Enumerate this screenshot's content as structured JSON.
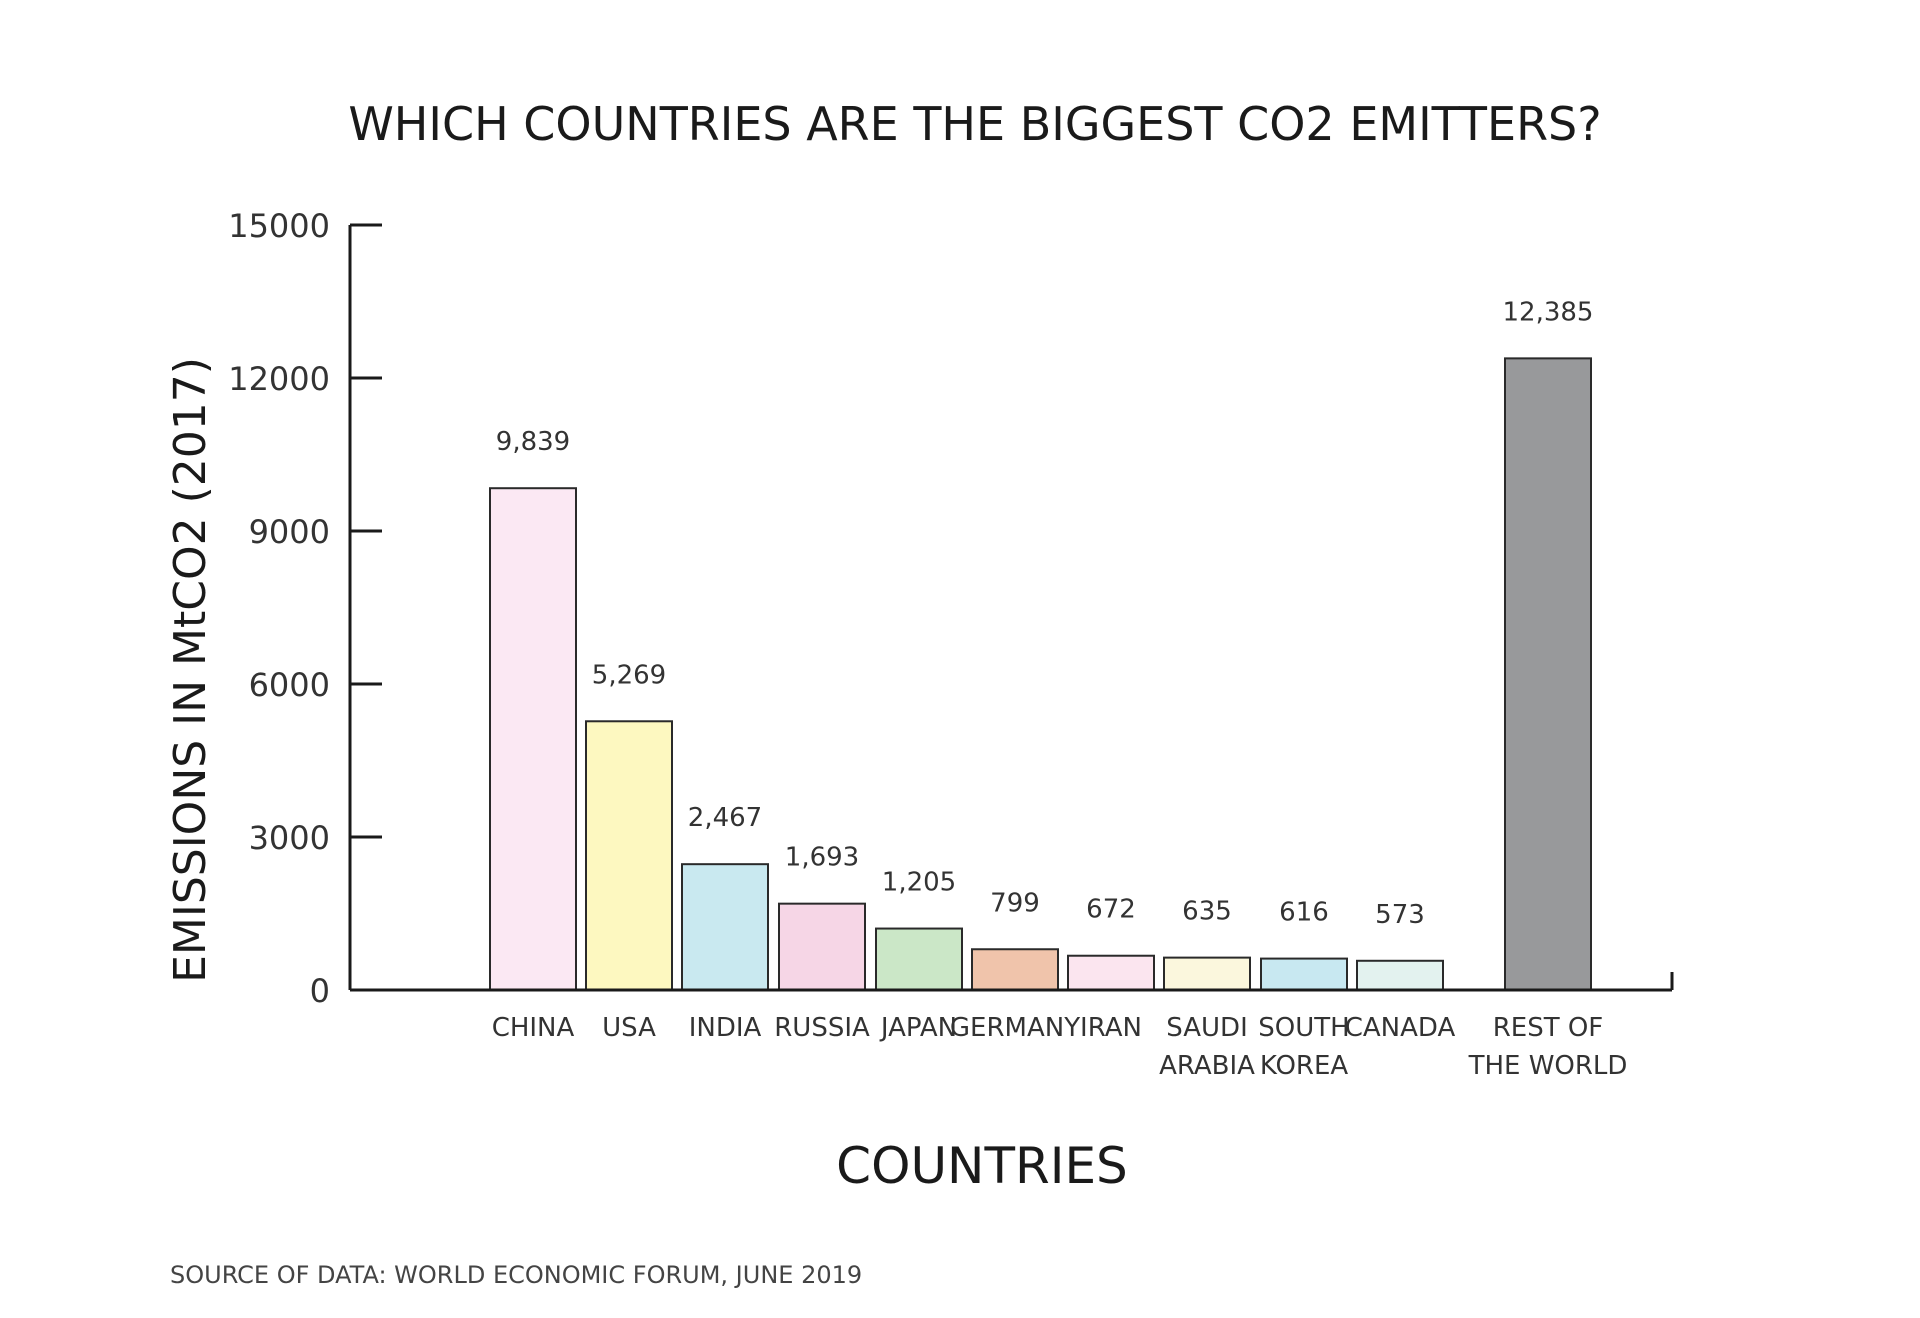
{
  "chart_data": {
    "type": "bar",
    "title": "WHICH COUNTRIES ARE THE BIGGEST CO2 EMITTERS?",
    "xlabel": "COUNTRIES",
    "ylabel": "EMISSIONS IN MtCO2 (2017)",
    "ylim": [
      0,
      15000
    ],
    "yticks": [
      0,
      3000,
      6000,
      9000,
      12000,
      15000
    ],
    "grid": false,
    "source": "SOURCE OF DATA: WORLD ECONOMIC FORUM, JUNE 2019",
    "categories": [
      {
        "name": "china",
        "lines": [
          "CHINA"
        ]
      },
      {
        "name": "usa",
        "lines": [
          "USA"
        ]
      },
      {
        "name": "india",
        "lines": [
          "INDIA"
        ]
      },
      {
        "name": "russia",
        "lines": [
          "RUSSIA"
        ]
      },
      {
        "name": "japan",
        "lines": [
          "JAPAN"
        ]
      },
      {
        "name": "germany",
        "lines": [
          "GERMANY"
        ]
      },
      {
        "name": "iran",
        "lines": [
          "IRAN"
        ]
      },
      {
        "name": "saudi-arabia",
        "lines": [
          "SAUDI",
          "ARABIA"
        ]
      },
      {
        "name": "south-korea",
        "lines": [
          "SOUTH",
          "KOREA"
        ]
      },
      {
        "name": "canada",
        "lines": [
          "CANADA"
        ]
      },
      {
        "name": "rest-of-the-world",
        "lines": [
          "REST OF",
          "THE WORLD"
        ]
      }
    ],
    "values": [
      9839,
      5269,
      2467,
      1693,
      1205,
      799,
      672,
      635,
      616,
      573,
      12385
    ],
    "value_labels": [
      "9,839",
      "5,269",
      "2,467",
      "1,693",
      "1,205",
      "799",
      "672",
      "635",
      "616",
      "573",
      "12,385"
    ],
    "colors": [
      "#fbe8f3",
      "#fdf8c0",
      "#c9e9f0",
      "#f6d6e6",
      "#cbe7c7",
      "#f0c4ab",
      "#fbe5ef",
      "#fbf7dd",
      "#c8e8f1",
      "#e3f2ef",
      "#98999b"
    ]
  }
}
